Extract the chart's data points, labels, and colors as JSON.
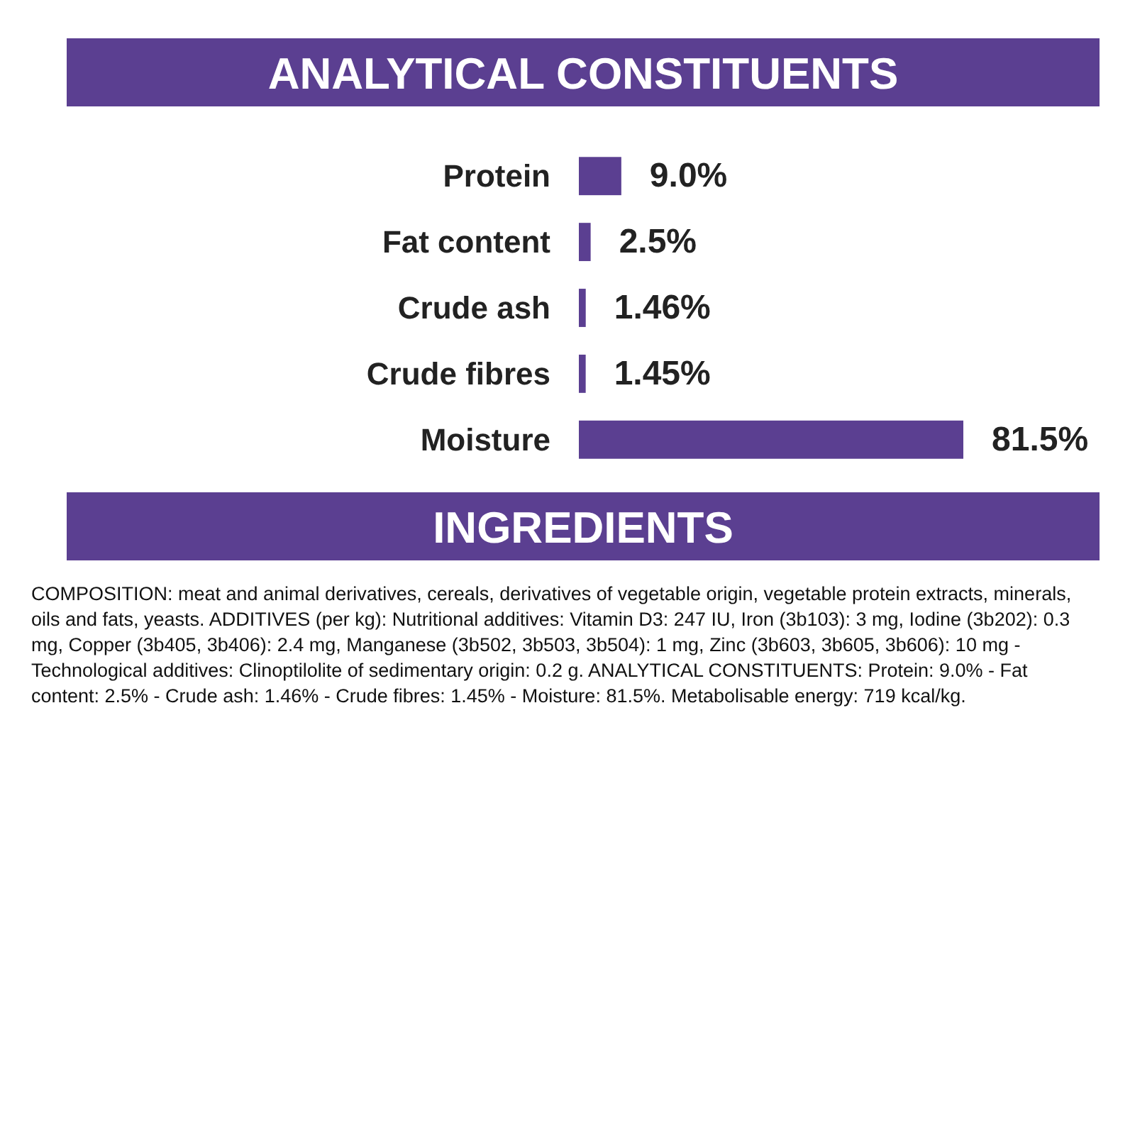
{
  "chart_data": {
    "type": "bar",
    "orientation": "horizontal",
    "title": "ANALYTICAL CONSTITUENTS",
    "categories": [
      "Protein",
      "Fat content",
      "Crude ash",
      "Crude fibres",
      "Moisture"
    ],
    "values": [
      9.0,
      2.5,
      1.46,
      1.45,
      81.5
    ],
    "value_labels": [
      "9.0%",
      "2.5%",
      "1.46%",
      "1.45%",
      "81.5%"
    ],
    "color": "#5b3f91",
    "annotations": [
      "INGREDIENTS",
      "COMPOSITION: meat and animal derivatives, cereals, derivatives of vegetable origin, vegetable protein extracts, minerals, oils and fats, yeasts. ADDITIVES (per kg): Nutritional additives: Vitamin D3: 247 IU, Iron (3b103): 3 mg, Iodine (3b202): 0.3 mg, Copper (3b405, 3b406): 2.4 mg, Manganese (3b502, 3b503, 3b504): 1 mg, Zinc (3b603, 3b605, 3b606): 10 mg - Technological additives: Clinoptilolite of sedimentary origin: 0.2 g. ANALYTICAL CONSTITUENTS: Protein: 9.0% - Fat content: 2.5% - Crude ash: 1.46% - Crude fibres: 1.45% - Moisture: 81.5%. Metabolisable energy: 719 kcal/kg."
    ]
  }
}
